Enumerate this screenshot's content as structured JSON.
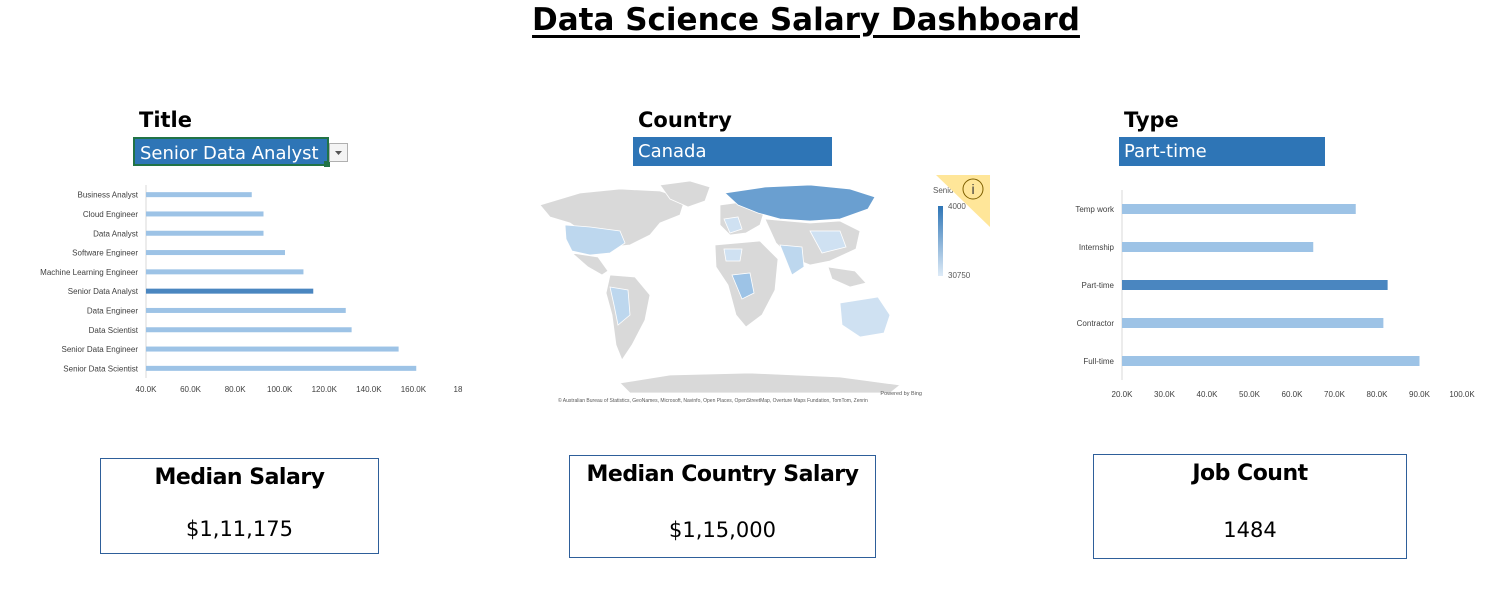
{
  "header": {
    "title": "Data Science Salary Dashboard"
  },
  "filters": {
    "title": {
      "label": "Title",
      "selected": "Senior Data Analyst"
    },
    "country": {
      "label": "Country",
      "selected": "Canada"
    },
    "type": {
      "label": "Type",
      "selected": "Part-time"
    }
  },
  "colors": {
    "accent": "#2e75b6",
    "bar": "#9dc3e6",
    "bar_highlight": "#4a86c0",
    "map_land": "#d9d9d9",
    "select_border": "#217346"
  },
  "map": {
    "legend_series": "Senio",
    "legend_max": "4000",
    "legend_min": "30750",
    "credit_powered": "Powered by Bing",
    "credit_sources": "© Australian Bureau of Statistics, GeoNames, Microsoft, Navinfo, Open Places, OpenStreetMap, Overture Maps Fundation, TomTom, Zenrin",
    "info_icon": "info-icon",
    "info_glyph": "i"
  },
  "chart_data": [
    {
      "type": "bar",
      "orientation": "horizontal",
      "categories": [
        "Business Analyst",
        "Cloud Engineer",
        "Data Analyst",
        "Software Engineer",
        "Machine Learning Engineer",
        "Senior Data Analyst",
        "Data Engineer",
        "Data Scientist",
        "Senior Data Engineer",
        "Senior Data Scientist"
      ],
      "values": [
        85000,
        90000,
        90000,
        99150,
        107000,
        111175,
        125000,
        127500,
        147500,
        155000
      ],
      "highlight": "Senior Data Analyst",
      "xlim": [
        40000,
        180000
      ],
      "xticks": [
        "40.0K",
        "60.0K",
        "80.0K",
        "100.0K",
        "120.0K",
        "140.0K",
        "160.0K",
        "18"
      ],
      "grid": false
    },
    {
      "type": "bar",
      "orientation": "horizontal",
      "categories": [
        "Temp work",
        "Internship",
        "Part-time",
        "Contractor",
        "Full-time"
      ],
      "values": [
        75000,
        65000,
        82500,
        81500,
        90000
      ],
      "highlight": "Part-time",
      "xlim": [
        20000,
        100000
      ],
      "xticks": [
        "20.0K",
        "30.0K",
        "40.0K",
        "50.0K",
        "60.0K",
        "70.0K",
        "80.0K",
        "90.0K",
        "100.0K"
      ],
      "grid": false
    }
  ],
  "kpis": {
    "median_salary": {
      "label": "Median Salary",
      "value": "$1,11,175"
    },
    "median_country_salary": {
      "label": "Median Country Salary",
      "value": "$1,15,000"
    },
    "job_count": {
      "label": "Job Count",
      "value": "1484"
    }
  }
}
